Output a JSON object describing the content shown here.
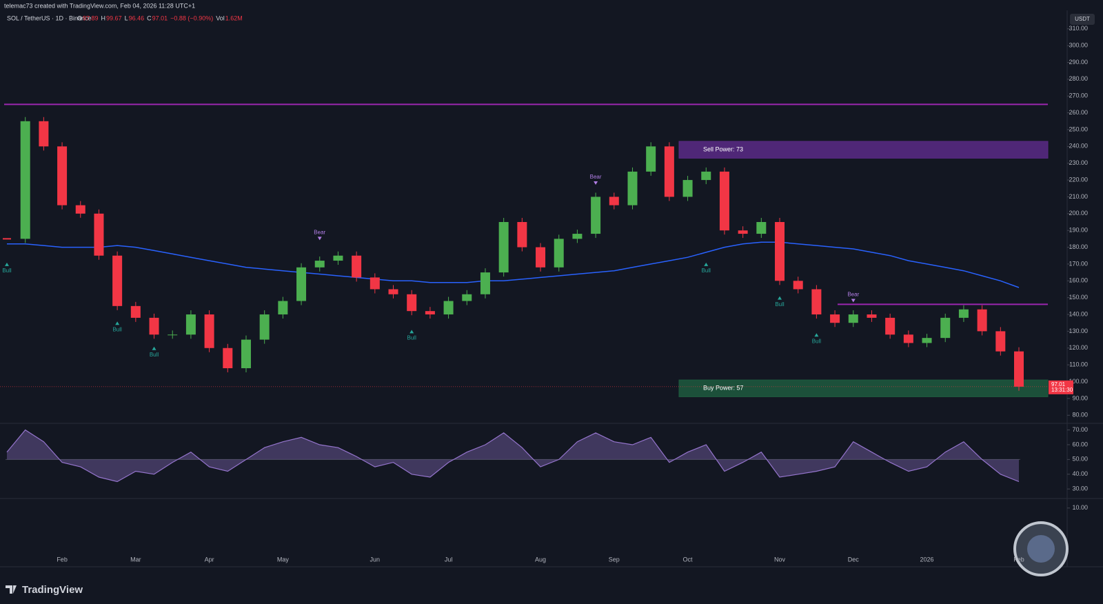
{
  "header": {
    "credit": "telemac73 created with TradingView.com, Feb 04, 2026 11:28 UTC+1",
    "symbol": "SOL / TetherUS · 1D · Binance",
    "legend": {
      "labels": [
        "O",
        "H",
        "L",
        "C",
        "Vol"
      ],
      "open": 97.89,
      "high": 99.67,
      "low": 96.46,
      "close": 97.01,
      "change": "−0.88 (−0.90%)",
      "volume": "1.62M"
    },
    "currency": "USDT",
    "brand": "TradingView"
  },
  "chart_data": {
    "type": "candlestick",
    "categories": [
      null,
      null,
      null,
      "Feb",
      null,
      null,
      null,
      "Mar",
      null,
      null,
      null,
      "Apr",
      null,
      null,
      null,
      "May",
      null,
      null,
      null,
      null,
      "Jun",
      null,
      null,
      null,
      "Jul",
      null,
      null,
      null,
      null,
      "Aug",
      null,
      null,
      null,
      "Sep",
      null,
      null,
      null,
      "Oct",
      null,
      null,
      null,
      null,
      "Nov",
      null,
      null,
      null,
      "Dec",
      null,
      null,
      null,
      "2026",
      null,
      null,
      null,
      null,
      "Feb"
    ],
    "up_color": "#4caf50",
    "down_color": "#f23645",
    "series": [
      {
        "values": [
          185,
          255,
          240,
          205,
          200,
          175,
          145,
          138,
          128,
          128,
          140,
          120,
          108,
          125,
          140,
          148,
          168,
          172,
          175,
          162,
          155,
          152,
          142,
          140,
          148,
          152,
          165,
          195,
          180,
          168,
          185,
          188,
          210,
          205,
          225,
          240,
          210,
          220,
          225,
          190,
          188,
          195,
          160,
          155,
          140,
          135,
          140,
          138,
          128,
          123,
          126,
          138,
          143,
          130,
          118,
          97.01
        ]
      },
      {
        "color": "#2962ff",
        "values": [
          182,
          182,
          181,
          180,
          180,
          180,
          181,
          180,
          178,
          176,
          174,
          172,
          170,
          168,
          167,
          166,
          165,
          164,
          163,
          162,
          161,
          160,
          160,
          159,
          159,
          159,
          160,
          160,
          161,
          162,
          163,
          164,
          165,
          166,
          168,
          170,
          172,
          174,
          177,
          180,
          182,
          183,
          183,
          182,
          181,
          180,
          179,
          177,
          175,
          172,
          170,
          168,
          166,
          163,
          160,
          156
        ]
      }
    ],
    "ylim": [
      76,
      314
    ],
    "yticks": [
      {
        "value": 80,
        "label": "80.00"
      },
      {
        "value": 90,
        "label": "90.00"
      },
      {
        "value": 100,
        "label": "100.00"
      },
      {
        "value": 110,
        "label": "110.00"
      },
      {
        "value": 120,
        "label": "120.00"
      },
      {
        "value": 130,
        "label": "130.00"
      },
      {
        "value": 140,
        "label": "140.00"
      },
      {
        "value": 150,
        "label": "150.00"
      },
      {
        "value": 160,
        "label": "160.00"
      },
      {
        "value": 170,
        "label": "170.00"
      },
      {
        "value": 180,
        "label": "180.00"
      },
      {
        "value": 190,
        "label": "190.00"
      },
      {
        "value": 200,
        "label": "200.00"
      },
      {
        "value": 210,
        "label": "210.00"
      },
      {
        "value": 220,
        "label": "220.00"
      },
      {
        "value": 230,
        "label": "230.00"
      },
      {
        "value": 240,
        "label": "240.00"
      },
      {
        "value": 250,
        "label": "250.00"
      },
      {
        "value": 260,
        "label": "260.00"
      },
      {
        "value": 270,
        "label": "270.00"
      },
      {
        "value": 280,
        "label": "280.00"
      },
      {
        "value": 290,
        "label": "290.00"
      },
      {
        "value": 300,
        "label": "300.00"
      },
      {
        "value": 310,
        "label": "310.00"
      }
    ],
    "grid": false,
    "levels": [
      {
        "value": 265,
        "color": "#9c27b0"
      },
      {
        "value": 146,
        "color": "#9c27b0"
      }
    ],
    "zones": [
      {
        "label": "Sell Power: 73",
        "low": 233,
        "high": 243,
        "color": "#5b2a86"
      },
      {
        "label": "Buy Power: 57",
        "low": 91,
        "high": 101,
        "color": "#1e5a3e"
      }
    ],
    "signals": {
      "bull": {
        "label": "Bull",
        "color": "#26a69a",
        "values": [
          170,
          null,
          null,
          null,
          null,
          null,
          135,
          null,
          120,
          null,
          null,
          null,
          null,
          null,
          null,
          null,
          null,
          null,
          null,
          null,
          null,
          null,
          130,
          null,
          null,
          null,
          null,
          null,
          null,
          null,
          null,
          null,
          null,
          null,
          null,
          null,
          null,
          null,
          170,
          null,
          null,
          null,
          150,
          null,
          128,
          null,
          null,
          null,
          null,
          null,
          null,
          null,
          null,
          null,
          null,
          null
        ]
      },
      "bear": {
        "label": "Bear",
        "color": "#b27ee6",
        "values": [
          null,
          null,
          null,
          null,
          null,
          null,
          null,
          null,
          null,
          null,
          null,
          null,
          null,
          null,
          null,
          null,
          null,
          185,
          null,
          null,
          null,
          null,
          null,
          null,
          null,
          null,
          null,
          null,
          null,
          null,
          null,
          null,
          218,
          null,
          null,
          null,
          null,
          null,
          null,
          null,
          null,
          null,
          null,
          null,
          null,
          null,
          148,
          null,
          null,
          null,
          null,
          null,
          null,
          null,
          null,
          null
        ]
      }
    },
    "last_price": {
      "value": 97.01,
      "countdown": "13:31:30",
      "color": "#f23645"
    },
    "rsi": {
      "ylim": [
        24,
        74
      ],
      "yticks": [
        {
          "value": 30,
          "label": "30.00"
        },
        {
          "value": 40,
          "label": "40.00"
        },
        {
          "value": 50,
          "label": "50.00"
        },
        {
          "value": 60,
          "label": "60.00"
        },
        {
          "value": 70,
          "label": "70.00"
        }
      ],
      "color": "#9575cd",
      "values": [
        55,
        70,
        62,
        48,
        45,
        38,
        35,
        42,
        40,
        48,
        55,
        45,
        42,
        50,
        58,
        62,
        65,
        60,
        58,
        52,
        45,
        48,
        40,
        38,
        48,
        55,
        60,
        68,
        58,
        45,
        50,
        62,
        68,
        62,
        60,
        65,
        48,
        55,
        60,
        42,
        48,
        55,
        38,
        40,
        42,
        45,
        62,
        55,
        48,
        42,
        45,
        55,
        62,
        50,
        40,
        35
      ]
    },
    "macd": {
      "ylim": [
        -16,
        14
      ],
      "yticks": [
        {
          "value": 10,
          "label": "10.00"
        }
      ]
    }
  }
}
